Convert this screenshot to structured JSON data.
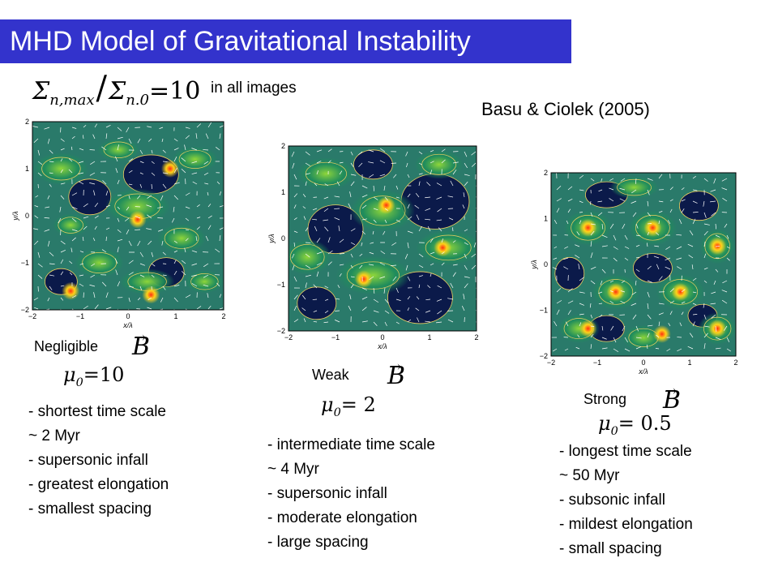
{
  "title": "MHD Model of Gravitational Instability",
  "equation": {
    "sigma": "Σ",
    "sub1": "n,max",
    "slash": "/",
    "sub2": "n.0",
    "rhs": "=10",
    "note": "in all images"
  },
  "citation": "Basu & Ciolek (2005)",
  "panels": [
    {
      "field_label": "Negligible",
      "mu_label": "μ",
      "mu_sub": "0",
      "mu_value": "=10",
      "B": "B",
      "bullets": [
        "- shortest  time scale",
        "~ 2 Myr",
        "- supersonic infall",
        "- greatest elongation",
        "- smallest spacing"
      ],
      "ticks": [
        "−2",
        "−1",
        "0",
        "1",
        "2"
      ],
      "xlabel": "x/λ",
      "ylabel": "y/λ"
    },
    {
      "field_label": "Weak",
      "mu_label": "μ",
      "mu_sub": "0",
      "mu_value": "= 2",
      "B": "B",
      "bullets": [
        "- intermediate time scale",
        "~ 4 Myr",
        "- supersonic infall",
        "- moderate elongation",
        "- large spacing"
      ],
      "ticks": [
        "−2",
        "−1",
        "0",
        "1",
        "2"
      ],
      "xlabel": "x/λ",
      "ylabel": "y/λ"
    },
    {
      "field_label": "Strong",
      "mu_label": "μ",
      "mu_sub": "0",
      "mu_value": "= 0.5",
      "B": "B",
      "bullets": [
        "- longest time scale",
        "~ 50 Myr",
        "- subsonic infall",
        "- mildest elongation",
        "- small spacing"
      ],
      "ticks": [
        "−2",
        "−1",
        "0",
        "1",
        "2"
      ],
      "xlabel": "x/λ",
      "ylabel": "y/λ"
    }
  ],
  "colors": {
    "title_bg": "#3333cc",
    "map_dark": "#0b1a4a",
    "map_mid": "#1f8f5a",
    "map_bright": "#8fd63a",
    "map_peak": "#ffd21a",
    "contour": "#f0d060",
    "vector": "#ffffff"
  }
}
